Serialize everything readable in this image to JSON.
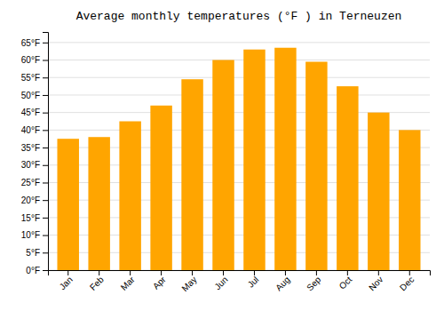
{
  "chart_data": {
    "type": "bar",
    "title": "Average monthly temperatures (°F ) in Terneuzen",
    "categories": [
      "Jan",
      "Feb",
      "Mar",
      "Apr",
      "May",
      "Jun",
      "Jul",
      "Aug",
      "Sep",
      "Oct",
      "Nov",
      "Dec"
    ],
    "values": [
      37.5,
      38,
      42.5,
      47,
      54.5,
      60,
      63,
      63.5,
      59.5,
      52.5,
      45,
      40
    ],
    "color": "#FFA500",
    "ylim": [
      0,
      68
    ],
    "yticks": [
      {
        "value": 0,
        "label": "0°F"
      },
      {
        "value": 5,
        "label": "5°F"
      },
      {
        "value": 10,
        "label": "10°F"
      },
      {
        "value": 15,
        "label": "15°F"
      },
      {
        "value": 20,
        "label": "20°F"
      },
      {
        "value": 25,
        "label": "25°F"
      },
      {
        "value": 30,
        "label": "30°F"
      },
      {
        "value": 35,
        "label": "35°F"
      },
      {
        "value": 40,
        "label": "40°F"
      },
      {
        "value": 45,
        "label": "45°F"
      },
      {
        "value": 50,
        "label": "50°F"
      },
      {
        "value": 55,
        "label": "55°F"
      },
      {
        "value": 60,
        "label": "60°F"
      },
      {
        "value": 65,
        "label": "65°F"
      }
    ],
    "grid": true
  }
}
